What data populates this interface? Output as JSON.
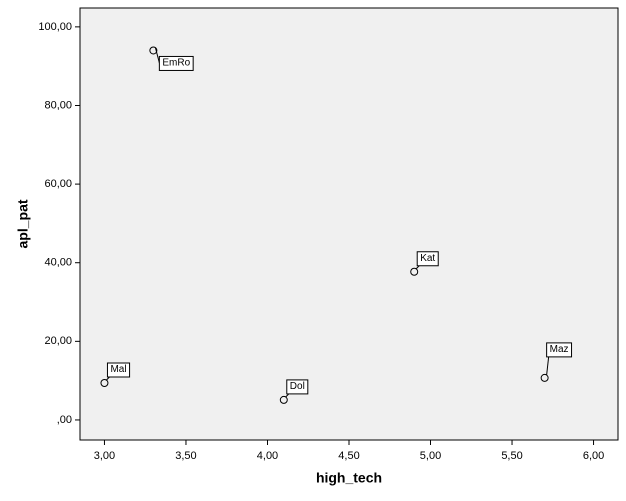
{
  "chart_data": {
    "type": "scatter",
    "x_label": "high_tech",
    "y_label": "apl_pat",
    "x": [
      3.3,
      4.9,
      3.0,
      4.1,
      5.7
    ],
    "values": [
      94,
      37.7,
      9.4,
      5.1,
      10.7
    ],
    "point_labels": [
      "EmRo",
      "Kat",
      "Mal",
      "Dol",
      "Maz"
    ],
    "xlim": [
      2.85,
      6.15
    ],
    "ylim": [
      -5.1,
      104.8
    ],
    "xticks": [
      {
        "value": 3,
        "label": "3,00"
      },
      {
        "value": 3.5,
        "label": "3,50"
      },
      {
        "value": 4,
        "label": "4,00"
      },
      {
        "value": 4.5,
        "label": "4,50"
      },
      {
        "value": 5,
        "label": "5,00"
      },
      {
        "value": 5.5,
        "label": "5,50"
      },
      {
        "value": 6,
        "label": "6,00"
      }
    ],
    "yticks": [
      {
        "value": 0,
        "label": ",00"
      },
      {
        "value": 20,
        "label": "20,00"
      },
      {
        "value": 40,
        "label": "40,00"
      },
      {
        "value": 60,
        "label": "60,00"
      },
      {
        "value": 80,
        "label": "80,00"
      },
      {
        "value": 100,
        "label": "100,00"
      }
    ],
    "marker_color": "#000000",
    "plot_background": "#f0f0f0"
  }
}
